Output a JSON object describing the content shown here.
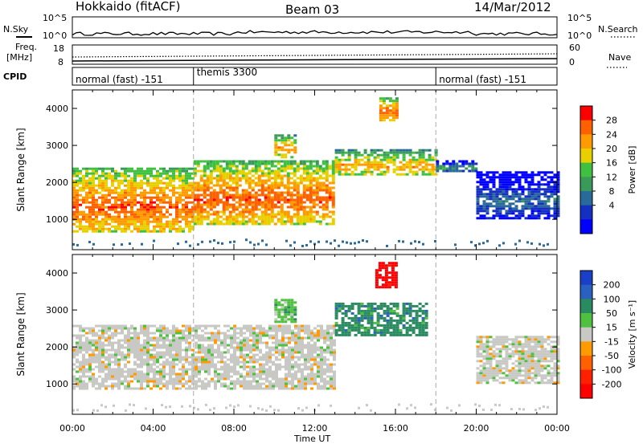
{
  "header": {
    "station": "Hokkaido (fitACF)",
    "beam": "Beam 03",
    "date": "14/Mar/2012"
  },
  "top_panels": {
    "nsky_label": "N.Sky",
    "nsearch_label": "N.Search",
    "noise_ticks": [
      "10^5",
      "10^0"
    ],
    "freq_label_line1": "Freq.",
    "freq_label_line2": "[MHz]",
    "freq_ticks": [
      "18",
      "8"
    ],
    "nave_label": "Nave",
    "nave_ticks": [
      "60",
      "0"
    ],
    "cpid_label": "CPID",
    "cpid_segments": [
      {
        "label": "normal (fast) -151",
        "start_h": 0,
        "end_h": 6
      },
      {
        "label": "themis 3300",
        "start_h": 6,
        "end_h": 18
      },
      {
        "label": "normal (fast) -151",
        "start_h": 18,
        "end_h": 24
      }
    ]
  },
  "chart_data": [
    {
      "type": "heatmap",
      "parameter": "Power",
      "ylabel": "Slant Range [km]",
      "xlim_hours": [
        0,
        24
      ],
      "ylim_km": [
        180,
        4500
      ],
      "yticks": [
        1000,
        2000,
        3000,
        4000
      ],
      "colorbar": {
        "label": "Power [dB]",
        "ticks": [
          28,
          24,
          20,
          16,
          12,
          8,
          4
        ],
        "colors": [
          "#ff0000",
          "#ff6000",
          "#ff9a00",
          "#e8d000",
          "#40c040",
          "#3a9a5a",
          "#2a6a9a",
          "#1530c0",
          "#0000ff"
        ]
      },
      "echo_regions": [
        {
          "start_h": 0.0,
          "end_h": 6.0,
          "range_min_km": 700,
          "range_max_km": 2400,
          "peak_db": 28
        },
        {
          "start_h": 6.0,
          "end_h": 13.0,
          "range_min_km": 900,
          "range_max_km": 2600,
          "peak_db": 28
        },
        {
          "start_h": 10.0,
          "end_h": 11.0,
          "range_min_km": 2700,
          "range_max_km": 3300,
          "peak_db": 24
        },
        {
          "start_h": 13.0,
          "end_h": 18.0,
          "range_min_km": 2200,
          "range_max_km": 2900,
          "peak_db": 24
        },
        {
          "start_h": 15.2,
          "end_h": 16.0,
          "range_min_km": 3700,
          "range_max_km": 4300,
          "peak_db": 28
        },
        {
          "start_h": 18.0,
          "end_h": 20.0,
          "range_min_km": 2300,
          "range_max_km": 2600,
          "peak_db": 16
        },
        {
          "start_h": 20.0,
          "end_h": 24.0,
          "range_min_km": 1000,
          "range_max_km": 2300,
          "peak_db": 12
        }
      ]
    },
    {
      "type": "heatmap",
      "parameter": "Velocity",
      "ylabel": "Slant Range [km]",
      "xlabel": "Time UT",
      "xticks": [
        "00:00",
        "04:00",
        "08:00",
        "12:00",
        "16:00",
        "20:00",
        "00:00"
      ],
      "xlim_hours": [
        0,
        24
      ],
      "ylim_km": [
        180,
        4500
      ],
      "yticks": [
        1000,
        2000,
        3000,
        4000
      ],
      "colorbar": {
        "label": "Velocity [m s⁻¹]",
        "ticks": [
          200,
          100,
          50,
          15,
          -15,
          -50,
          -100,
          -200
        ],
        "colors": [
          "#1a40c8",
          "#2a60c0",
          "#2a8a60",
          "#50c040",
          "#c8c8c4",
          "#ff9a00",
          "#ff6000",
          "#ff2000",
          "#ff0000"
        ]
      },
      "echo_regions": [
        {
          "start_h": 0.0,
          "end_h": 13.0,
          "range_min_km": 900,
          "range_max_km": 2600,
          "velocity_ms": 0
        },
        {
          "start_h": 10.0,
          "end_h": 11.0,
          "range_min_km": 2700,
          "range_max_km": 3300,
          "velocity_ms": 50
        },
        {
          "start_h": 13.0,
          "end_h": 17.5,
          "range_min_km": 2300,
          "range_max_km": 3200,
          "velocity_ms": 100
        },
        {
          "start_h": 15.0,
          "end_h": 16.1,
          "range_min_km": 3600,
          "range_max_km": 4300,
          "velocity_ms": -200
        },
        {
          "start_h": 20.0,
          "end_h": 24.0,
          "range_min_km": 1000,
          "range_max_km": 2300,
          "velocity_ms": 0
        }
      ]
    }
  ]
}
